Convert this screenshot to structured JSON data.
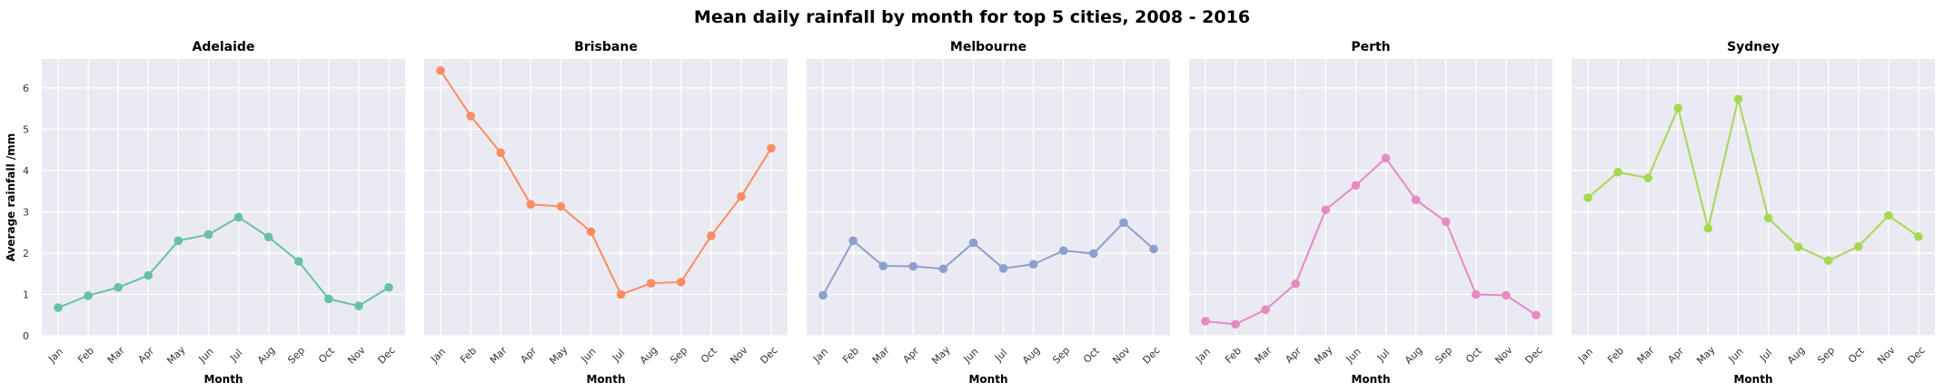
{
  "chart_data": {
    "type": "line",
    "title": "Mean daily rainfall by month for top 5 cities, 2008 - 2016",
    "xlabel": "Month",
    "ylabel": "Average rainfall /mm",
    "ylim": [
      0,
      6.7
    ],
    "yticks": [
      0,
      1,
      2,
      3,
      4,
      5,
      6
    ],
    "grid": true,
    "categories": [
      "Jan",
      "Feb",
      "Mar",
      "Apr",
      "May",
      "Jun",
      "Jul",
      "Aug",
      "Sep",
      "Oct",
      "Nov",
      "Dec"
    ],
    "panels": [
      {
        "title": "Adelaide",
        "color": "#66c2a5",
        "values": [
          0.68,
          0.97,
          1.17,
          1.46,
          2.3,
          2.45,
          2.87,
          2.39,
          1.8,
          0.89,
          0.72,
          1.17
        ]
      },
      {
        "title": "Brisbane",
        "color": "#fc8d62",
        "values": [
          6.42,
          5.32,
          4.43,
          3.18,
          3.13,
          2.52,
          1.0,
          1.27,
          1.3,
          2.42,
          3.37,
          4.54
        ]
      },
      {
        "title": "Melbourne",
        "color": "#8da0cb",
        "values": [
          0.98,
          2.3,
          1.69,
          1.68,
          1.62,
          2.25,
          1.63,
          1.73,
          2.06,
          1.99,
          2.74,
          2.1
        ]
      },
      {
        "title": "Perth",
        "color": "#e78ac3",
        "values": [
          0.35,
          0.28,
          0.63,
          1.26,
          3.05,
          3.64,
          4.3,
          3.29,
          2.76,
          1.0,
          0.98,
          0.5
        ]
      },
      {
        "title": "Sydney",
        "color": "#a6d854",
        "values": [
          3.34,
          3.96,
          3.82,
          5.51,
          2.6,
          5.73,
          2.85,
          2.15,
          1.82,
          2.16,
          2.91,
          2.4
        ]
      }
    ]
  }
}
